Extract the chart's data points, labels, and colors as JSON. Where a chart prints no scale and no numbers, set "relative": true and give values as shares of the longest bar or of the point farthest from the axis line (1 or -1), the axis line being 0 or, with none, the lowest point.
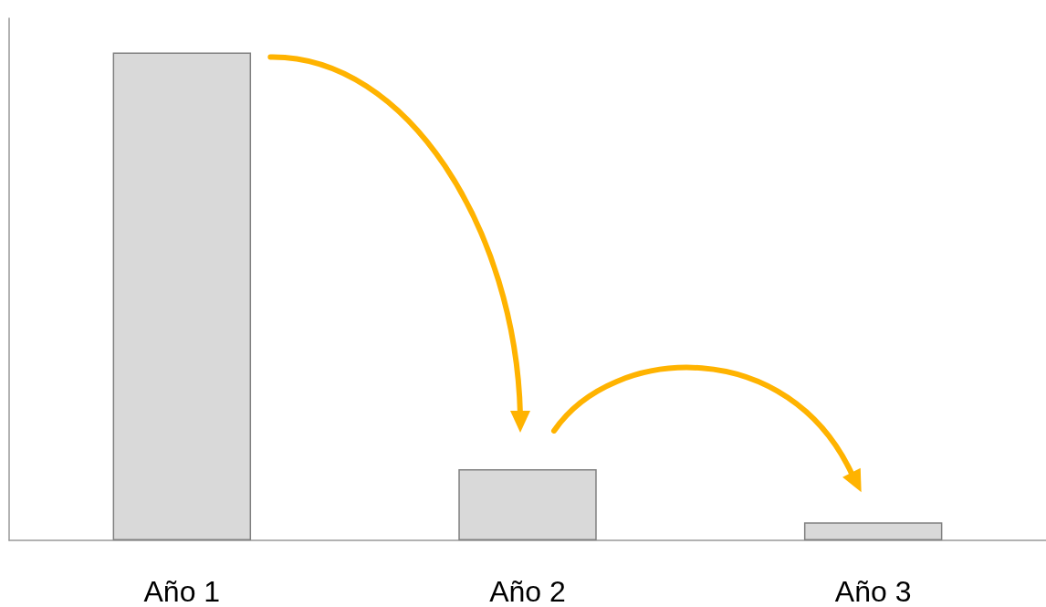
{
  "chart_data": {
    "type": "bar",
    "relative": true,
    "categories": [
      "Año 1",
      "Año 2",
      "Año 3"
    ],
    "values": [
      1,
      0.146,
      0.037
    ],
    "color": "#d9d9d9",
    "grid": false
  }
}
